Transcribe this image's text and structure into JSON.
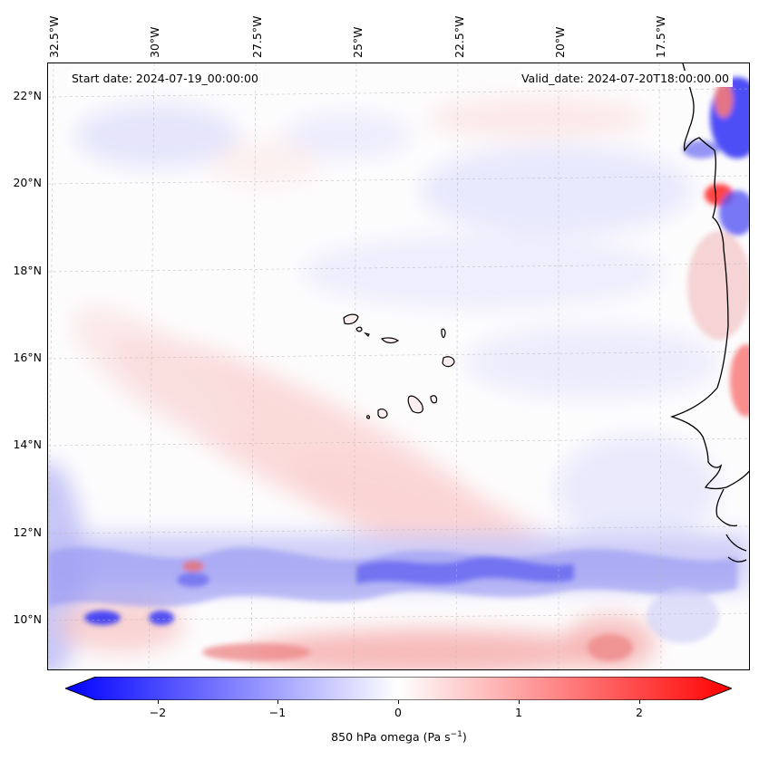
{
  "map": {
    "start_label": "Start date: 2024-07-19_00:00:00",
    "valid_label": "Valid_date: 2024-07-20T18:00:00.00",
    "lon_labels": [
      "32.5°W",
      "30°W",
      "27.5°W",
      "25°W",
      "22.5°W",
      "20°W",
      "17.5°W"
    ],
    "lat_labels": [
      "22°N",
      "20°N",
      "18°N",
      "16°N",
      "14°N",
      "12°N",
      "10°N"
    ],
    "variable": "850 hPa omega",
    "units": "Pa s",
    "units_exp": "−1"
  },
  "colorbar": {
    "ticks": [
      "−2",
      "−1",
      "0",
      "1",
      "2"
    ],
    "tick_values": [
      -2,
      -1,
      0,
      1,
      2
    ],
    "range": [
      -2.5,
      2.5
    ],
    "colormap": "bwr",
    "extend": "both",
    "colors": {
      "min": "#0000ff",
      "mid": "#ffffff",
      "max": "#ff0000"
    }
  },
  "features": {
    "coastline": "West Africa (Mauritania, Senegal, Gambia, Guinea-Bissau)",
    "islands": "Cape Verde"
  }
}
